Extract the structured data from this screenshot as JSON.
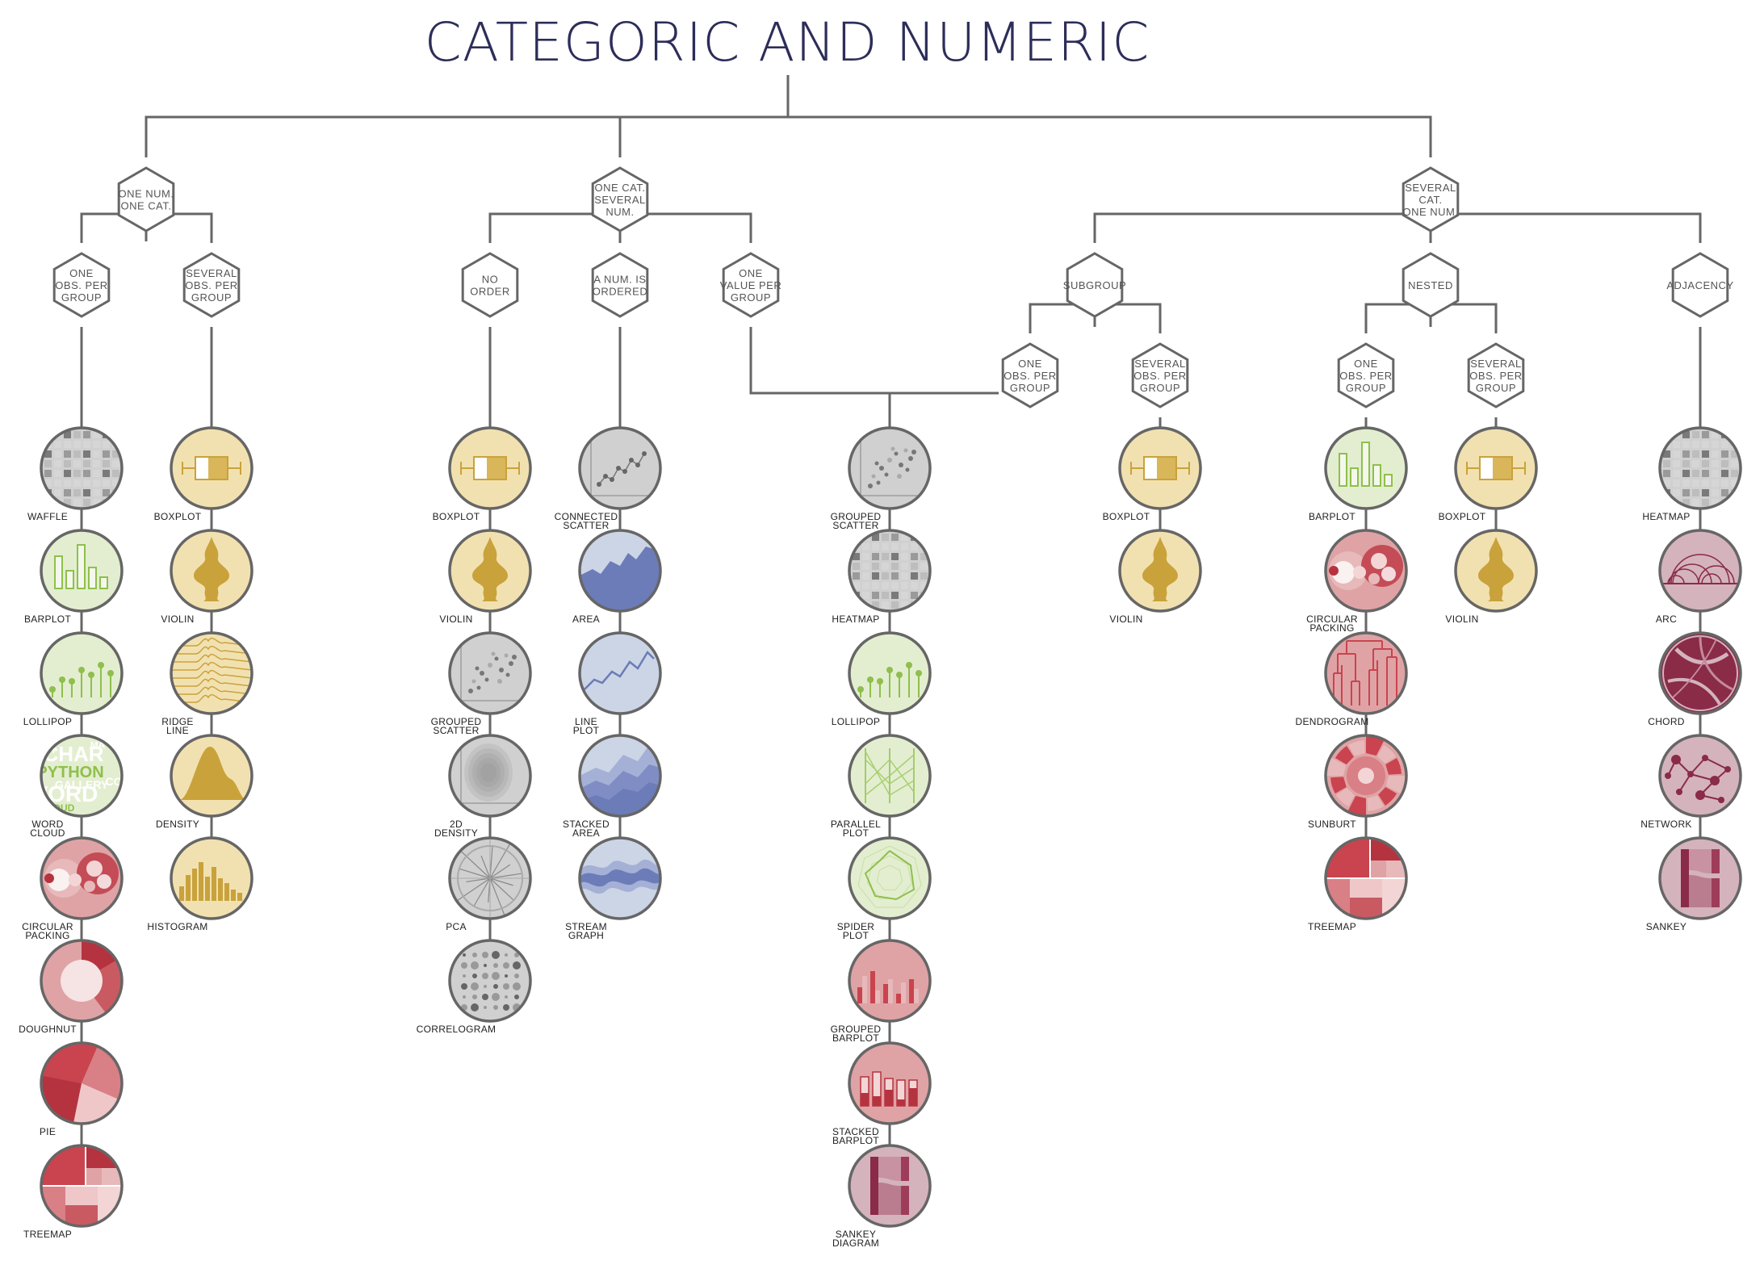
{
  "title": "CATEGORIC AND NUMERIC",
  "colors": {
    "line": "#666666",
    "yellow": "#f2e1b0",
    "gold": "#c9a23c",
    "green": "#e3eed0",
    "lime": "#8fbf4c",
    "grey": "#d0d0d0",
    "blue": "#ccd5e6",
    "indigo": "#6b7cb8",
    "red": "#dfa3a5",
    "crimson": "#b5333f",
    "mauve": "#d4b3bd",
    "wine": "#8a2b48"
  },
  "hexagons": [
    {
      "id": "h1",
      "label": [
        "ONE NUM.",
        "ONE CAT."
      ]
    },
    {
      "id": "h2",
      "label": [
        "ONE CAT.",
        "SEVERAL",
        "NUM."
      ]
    },
    {
      "id": "h3",
      "label": [
        "SEVERAL",
        "CAT.",
        "ONE NUM."
      ]
    },
    {
      "id": "h4",
      "label": [
        "ONE",
        "OBS. PER",
        "GROUP"
      ]
    },
    {
      "id": "h5",
      "label": [
        "SEVERAL",
        "OBS. PER",
        "GROUP"
      ]
    },
    {
      "id": "h6",
      "label": [
        "NO",
        "ORDER"
      ]
    },
    {
      "id": "h7",
      "label": [
        "A NUM. IS",
        "ORDERED"
      ]
    },
    {
      "id": "h8",
      "label": [
        "ONE",
        "VALUE PER",
        "GROUP"
      ]
    },
    {
      "id": "h9",
      "label": [
        "SUBGROUP"
      ]
    },
    {
      "id": "h10",
      "label": [
        "NESTED"
      ]
    },
    {
      "id": "h11",
      "label": [
        "ADJACENCY"
      ]
    },
    {
      "id": "h12",
      "label": [
        "ONE",
        "OBS. PER",
        "GROUP"
      ]
    },
    {
      "id": "h13",
      "label": [
        "SEVERAL",
        "OBS. PER",
        "GROUP"
      ]
    },
    {
      "id": "h14",
      "label": [
        "ONE",
        "OBS. PER",
        "GROUP"
      ]
    },
    {
      "id": "h15",
      "label": [
        "SEVERAL",
        "OBS. PER",
        "GROUP"
      ]
    }
  ],
  "columns": [
    {
      "id": "c1",
      "items": [
        [
          "WAFFLE",
          "waffle",
          "grey"
        ],
        [
          "BARPLOT",
          "barplot",
          "green"
        ],
        [
          "LOLLIPOP",
          "lollipop",
          "green"
        ],
        [
          "WORD CLOUD",
          "wordcloud",
          "green"
        ],
        [
          "CIRCULAR PACKING",
          "packing",
          "red"
        ],
        [
          "DOUGHNUT",
          "doughnut",
          "red"
        ],
        [
          "PIE",
          "pie",
          "red"
        ],
        [
          "TREEMAP",
          "treemap",
          "red"
        ]
      ]
    },
    {
      "id": "c2",
      "items": [
        [
          "BOXPLOT",
          "boxplot",
          "yellow"
        ],
        [
          "VIOLIN",
          "violin",
          "yellow"
        ],
        [
          "RIDGE LINE",
          "ridge",
          "yellow"
        ],
        [
          "DENSITY",
          "density",
          "yellow"
        ],
        [
          "HISTOGRAM",
          "histogram",
          "yellow"
        ]
      ]
    },
    {
      "id": "c3",
      "items": [
        [
          "BOXPLOT",
          "boxplot",
          "yellow"
        ],
        [
          "VIOLIN",
          "violin",
          "yellow"
        ],
        [
          "GROUPED SCATTER",
          "scatter",
          "grey"
        ],
        [
          "2D DENSITY",
          "density2d",
          "grey"
        ],
        [
          "PCA",
          "pca",
          "grey"
        ],
        [
          "CORRELOGRAM",
          "correlogram",
          "grey"
        ]
      ]
    },
    {
      "id": "c4",
      "items": [
        [
          "CONNECTED SCATTER",
          "connected",
          "grey"
        ],
        [
          "AREA",
          "area",
          "blue"
        ],
        [
          "LINE PLOT",
          "line",
          "blue"
        ],
        [
          "STACKED AREA",
          "stacked",
          "blue"
        ],
        [
          "STREAM GRAPH",
          "stream",
          "blue"
        ]
      ]
    },
    {
      "id": "c5",
      "items": [
        [
          "GROUPED SCATTER",
          "scatter",
          "grey"
        ],
        [
          "HEATMAP",
          "waffle",
          "grey"
        ],
        [
          "LOLLIPOP",
          "lollipop",
          "green"
        ],
        [
          "PARALLEL PLOT",
          "parallel",
          "green"
        ],
        [
          "SPIDER PLOT",
          "spider",
          "green"
        ],
        [
          "GROUPED BARPLOT",
          "groupedbar",
          "red"
        ],
        [
          "STACKED BARPLOT",
          "stackedbar",
          "red"
        ],
        [
          "SANKEY DIAGRAM",
          "sankey",
          "mauve"
        ]
      ]
    },
    {
      "id": "c6",
      "items": [
        [
          "BOXPLOT",
          "boxplot",
          "yellow"
        ],
        [
          "VIOLIN",
          "violin",
          "yellow"
        ]
      ]
    },
    {
      "id": "c7",
      "items": [
        [
          "BARPLOT",
          "barplot",
          "green"
        ],
        [
          "CIRCULAR PACKING",
          "packing",
          "red"
        ],
        [
          "DENDROGRAM",
          "dendrogram",
          "red"
        ],
        [
          "SUNBURT",
          "sunburst",
          "red"
        ],
        [
          "TREEMAP",
          "treemap",
          "red"
        ]
      ]
    },
    {
      "id": "c8",
      "items": [
        [
          "BOXPLOT",
          "boxplot",
          "yellow"
        ],
        [
          "VIOLIN",
          "violin",
          "yellow"
        ]
      ]
    },
    {
      "id": "c9",
      "items": [
        [
          "HEATMAP",
          "waffle",
          "grey"
        ],
        [
          "ARC",
          "arc",
          "mauve"
        ],
        [
          "CHORD",
          "chord",
          "wine"
        ],
        [
          "NETWORK",
          "network",
          "mauve"
        ],
        [
          "SANKEY",
          "sankey",
          "mauve"
        ]
      ]
    }
  ],
  "wordcloud_words": [
    "CHAR",
    "PYTHON",
    "GALLERY",
    "WORD",
    "CLOUD",
    "MA",
    "CO",
    "MY"
  ]
}
